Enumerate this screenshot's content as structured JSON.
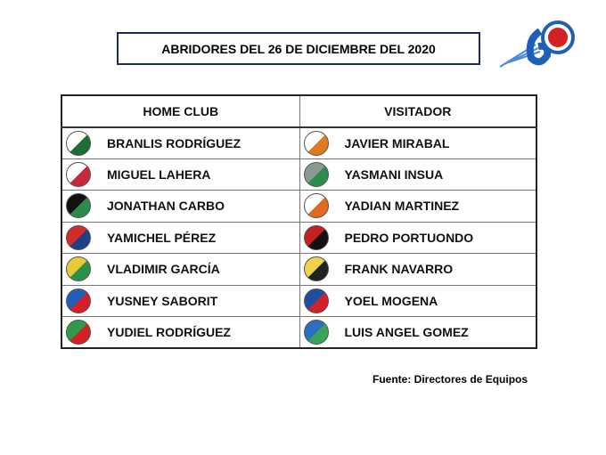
{
  "title": "ABRIDORES  DEL 26 DE DICIEMBRE  DEL 2020",
  "logo": {
    "name": "60 serie nacional logo",
    "colors": [
      "#1f5fb8",
      "#d32027"
    ]
  },
  "table": {
    "headers": [
      "HOME CLUB",
      "VISITADOR"
    ],
    "rows": [
      {
        "home": "BRANLIS RODRÍGUEZ",
        "home_logo": [
          "#fff",
          "#1f6b3a"
        ],
        "visitor": "JAVIER MIRABAL",
        "visitor_logo": [
          "#fff",
          "#e07a1f"
        ]
      },
      {
        "home": "MIGUEL LAHERA",
        "home_logo": [
          "#fff",
          "#c9283c"
        ],
        "visitor": "YASMANI INSUA",
        "visitor_logo": [
          "#8a9a8f",
          "#2e8b4e"
        ]
      },
      {
        "home": "JONATHAN CARBO",
        "home_logo": [
          "#111",
          "#2d8a4a"
        ],
        "visitor": "YADIAN MARTINEZ",
        "visitor_logo": [
          "#fff",
          "#e06a20"
        ]
      },
      {
        "home": "YAMICHEL PÉREZ",
        "home_logo": [
          "#d42a2a",
          "#1f3f8a"
        ],
        "visitor": "PEDRO PORTUONDO",
        "visitor_logo": [
          "#c62020",
          "#111"
        ]
      },
      {
        "home": "VLADIMIR GARCÍA",
        "home_logo": [
          "#e8c93a",
          "#2c8f4a"
        ],
        "visitor": "FRANK NAVARRO",
        "visitor_logo": [
          "#f0d24a",
          "#222"
        ]
      },
      {
        "home": "YUSNEY SABORIT",
        "home_logo": [
          "#1f5fb8",
          "#d32027"
        ],
        "visitor": "YOEL MOGENA",
        "visitor_logo": [
          "#1f4fa0",
          "#d32027"
        ]
      },
      {
        "home": "YUDIEL RODRÍGUEZ",
        "home_logo": [
          "#2e9a4a",
          "#d32027"
        ],
        "visitor": "LUIS ANGEL GOMEZ",
        "visitor_logo": [
          "#2a6fc0",
          "#3aa35a"
        ]
      }
    ]
  },
  "source": "Fuente: Directores de Equipos"
}
